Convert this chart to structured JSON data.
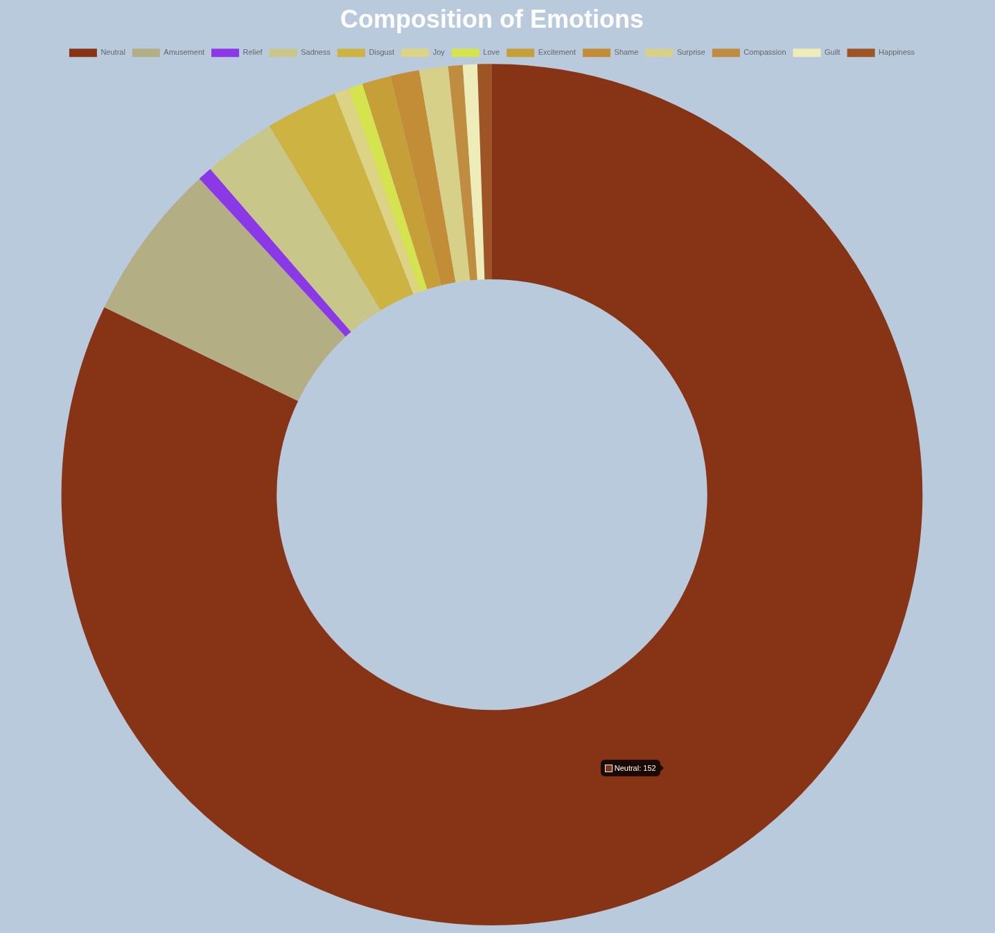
{
  "chart_data": {
    "type": "donut",
    "title": "Composition of Emotions",
    "categories": [
      "Neutral",
      "Amusement",
      "Relief",
      "Sadness",
      "Disgust",
      "Joy",
      "Love",
      "Excitement",
      "Shame",
      "Surprise",
      "Compassion",
      "Guilt",
      "Happiness"
    ],
    "values": [
      152,
      11,
      1,
      5,
      5,
      1,
      1,
      2,
      2,
      2,
      1,
      1,
      1
    ],
    "colors": [
      "#873416",
      "#b4ae84",
      "#8b38e6",
      "#c8c688",
      "#cdb342",
      "#dcd384",
      "#d4e34e",
      "#c79f39",
      "#c38d38",
      "#d7d088",
      "#bf8c40",
      "#eeecb8",
      "#9e5424"
    ],
    "value_labels": [
      "Neutral: 152",
      null,
      null,
      null,
      null,
      null,
      null,
      null,
      null,
      null,
      null,
      null,
      null
    ],
    "legend": "top"
  }
}
